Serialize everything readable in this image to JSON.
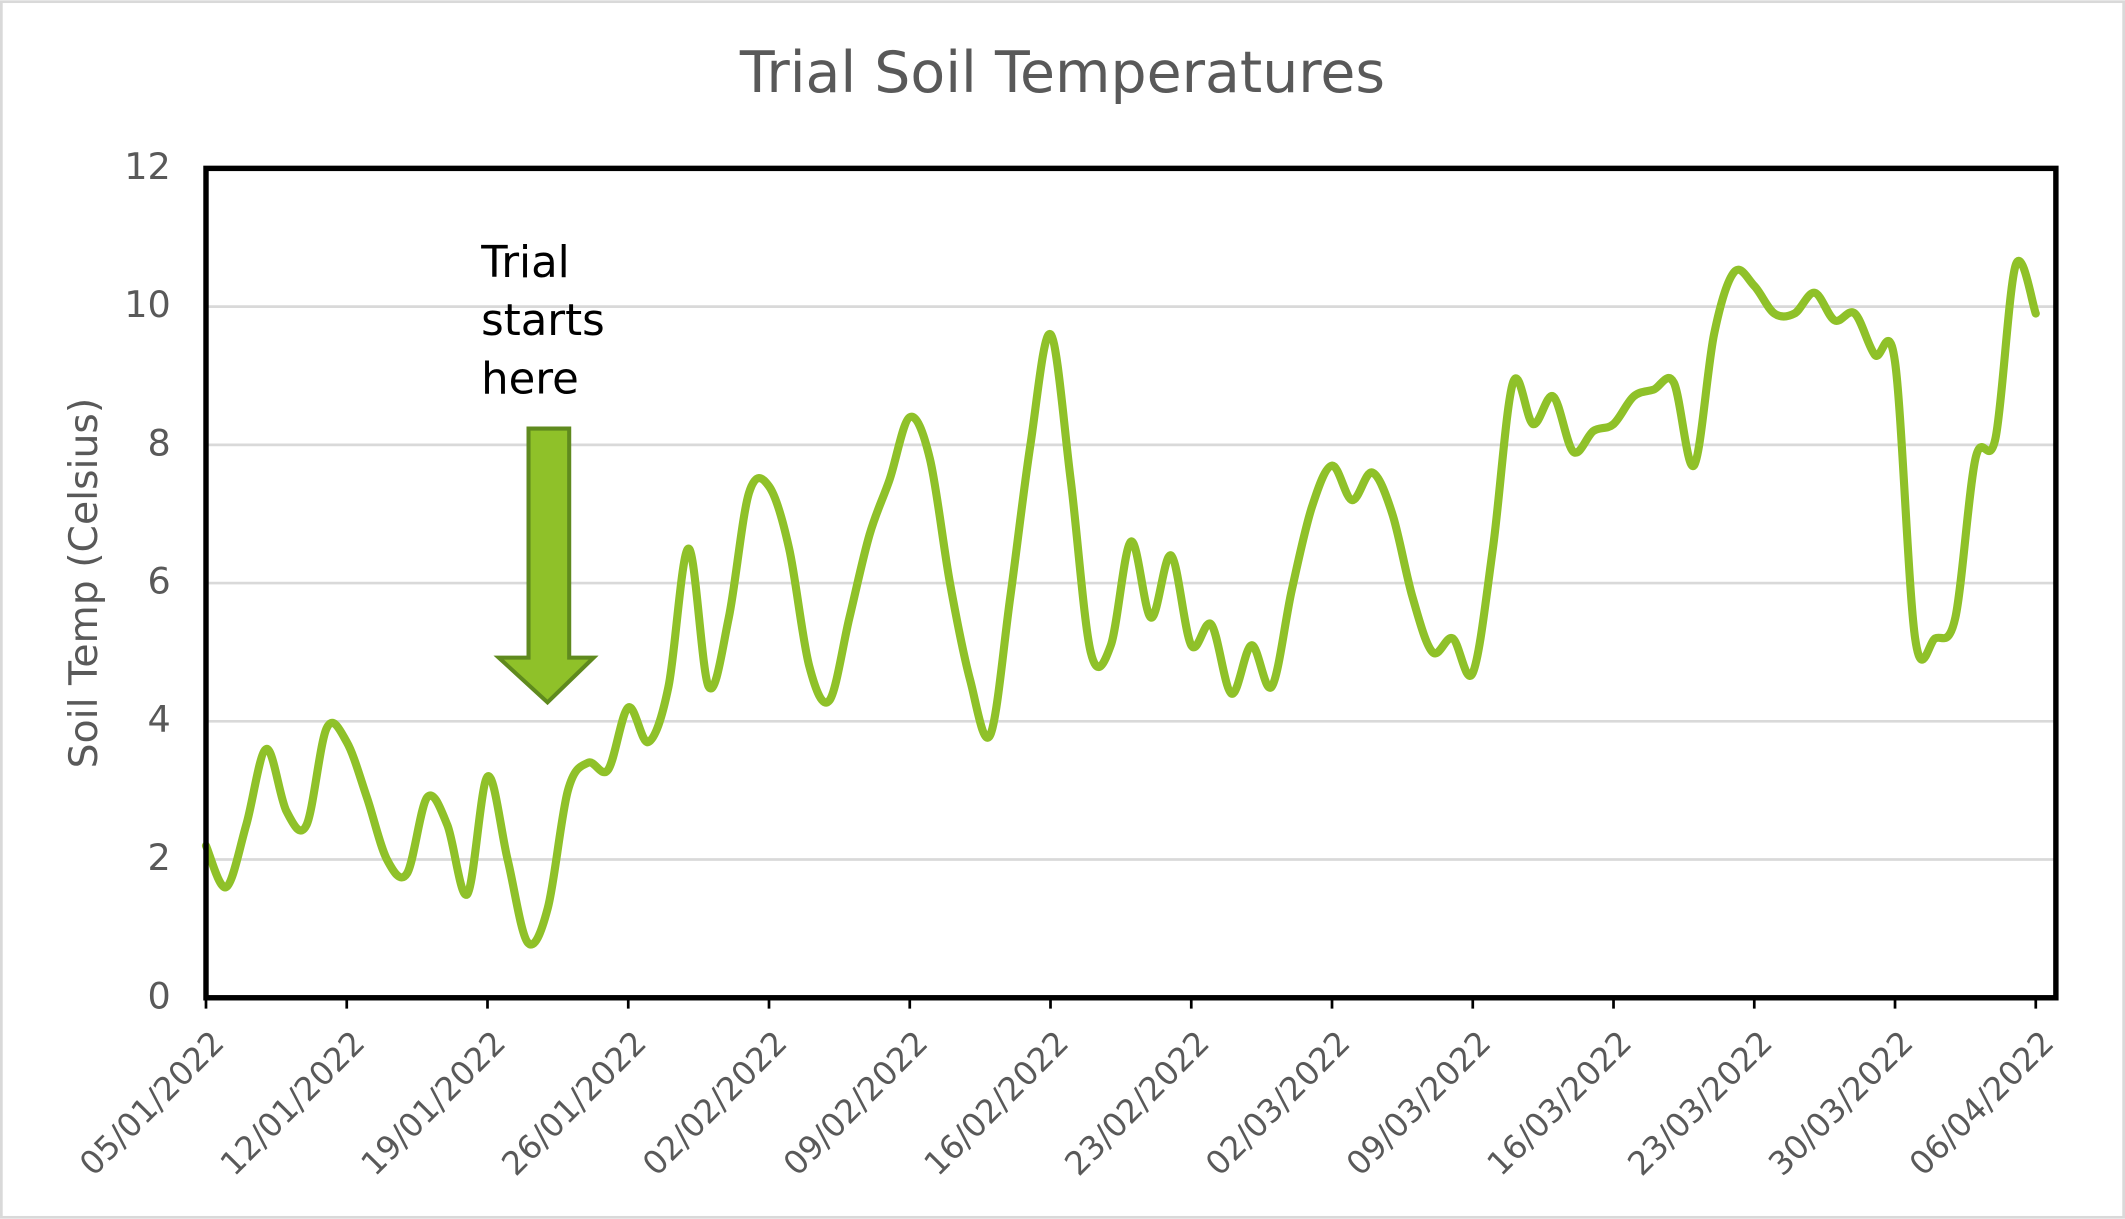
{
  "chart_data": {
    "type": "line",
    "title": "Trial Soil Temperatures",
    "y_label": "Soil Temp (Celsius)",
    "annotation": "Trial starts here",
    "x": [
      "05/01/2022",
      "06/01/2022",
      "07/01/2022",
      "08/01/2022",
      "09/01/2022",
      "10/01/2022",
      "11/01/2022",
      "12/01/2022",
      "13/01/2022",
      "14/01/2022",
      "15/01/2022",
      "16/01/2022",
      "17/01/2022",
      "18/01/2022",
      "19/01/2022",
      "20/01/2022",
      "21/01/2022",
      "22/01/2022",
      "23/01/2022",
      "24/01/2022",
      "25/01/2022",
      "26/01/2022",
      "27/01/2022",
      "28/01/2022",
      "29/01/2022",
      "30/01/2022",
      "31/01/2022",
      "01/02/2022",
      "02/02/2022",
      "03/02/2022",
      "04/02/2022",
      "05/02/2022",
      "06/02/2022",
      "07/02/2022",
      "08/02/2022",
      "09/02/2022",
      "10/02/2022",
      "11/02/2022",
      "12/02/2022",
      "13/02/2022",
      "14/02/2022",
      "15/02/2022",
      "16/02/2022",
      "17/02/2022",
      "18/02/2022",
      "19/02/2022",
      "20/02/2022",
      "21/02/2022",
      "22/02/2022",
      "23/02/2022",
      "24/02/2022",
      "25/02/2022",
      "26/02/2022",
      "27/02/2022",
      "28/02/2022",
      "01/03/2022",
      "02/03/2022",
      "03/03/2022",
      "04/03/2022",
      "05/03/2022",
      "06/03/2022",
      "07/03/2022",
      "08/03/2022",
      "09/03/2022",
      "10/03/2022",
      "11/03/2022",
      "12/03/2022",
      "13/03/2022",
      "14/03/2022",
      "15/03/2022",
      "16/03/2022",
      "17/03/2022",
      "18/03/2022",
      "19/03/2022",
      "20/03/2022",
      "21/03/2022",
      "22/03/2022",
      "23/03/2022",
      "24/03/2022",
      "25/03/2022",
      "26/03/2022",
      "27/03/2022",
      "28/03/2022",
      "29/03/2022",
      "30/03/2022",
      "31/03/2022",
      "01/04/2022",
      "02/04/2022",
      "03/04/2022",
      "04/04/2022",
      "05/04/2022",
      "06/04/2022"
    ],
    "series": [
      {
        "name": "Soil Temp",
        "color": "#8fc129",
        "values": [
          2.2,
          1.6,
          2.5,
          3.6,
          2.7,
          2.5,
          3.9,
          3.7,
          2.9,
          2.0,
          1.8,
          2.9,
          2.5,
          1.5,
          3.2,
          2.0,
          0.8,
          1.3,
          3.0,
          3.4,
          3.3,
          4.2,
          3.7,
          4.5,
          6.5,
          4.5,
          5.5,
          7.3,
          7.4,
          6.5,
          4.8,
          4.3,
          5.5,
          6.7,
          7.5,
          8.4,
          7.8,
          6.0,
          4.6,
          3.8,
          5.8,
          8.0,
          9.6,
          7.5,
          5.0,
          5.1,
          6.6,
          5.5,
          6.4,
          5.1,
          5.4,
          4.4,
          5.1,
          4.5,
          5.9,
          7.1,
          7.7,
          7.2,
          7.6,
          7.0,
          5.8,
          5.0,
          5.2,
          4.7,
          6.5,
          8.9,
          8.3,
          8.7,
          7.9,
          8.2,
          8.3,
          8.7,
          8.8,
          8.9,
          7.7,
          9.6,
          10.5,
          10.3,
          9.9,
          9.9,
          10.2,
          9.8,
          9.9,
          9.3,
          9.2,
          5.2,
          5.2,
          5.5,
          7.8,
          8.1,
          10.6,
          9.9
        ]
      }
    ],
    "xlim": [
      "05/01/2022",
      "07/04/2022"
    ],
    "xticks": [
      "05/01/2022",
      "12/01/2022",
      "19/01/2022",
      "26/01/2022",
      "02/02/2022",
      "09/02/2022",
      "16/02/2022",
      "23/02/2022",
      "02/03/2022",
      "09/03/2022",
      "16/03/2022",
      "23/03/2022",
      "30/03/2022",
      "06/04/2022"
    ],
    "ylim": [
      0,
      12
    ],
    "yticks": [
      0,
      2,
      4,
      6,
      8,
      10,
      12
    ],
    "grid": true
  }
}
